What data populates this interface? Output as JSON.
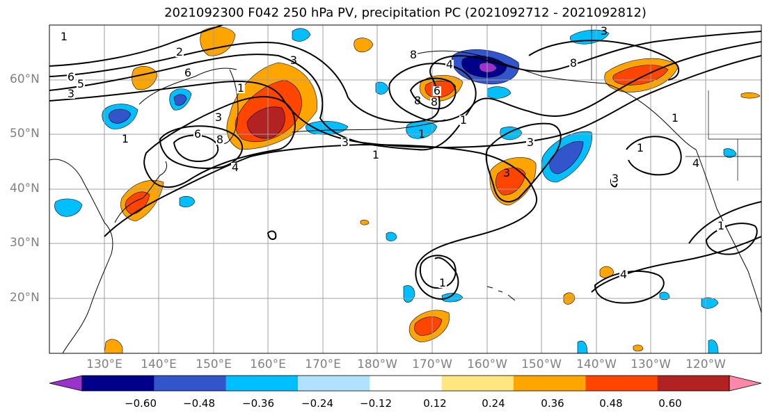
{
  "title": "2021092300 F042 250 hPa PV, precipitation PC (2021092712 - 2021092812)",
  "lat_labels": [
    "60°N",
    "50°N",
    "40°N",
    "30°N",
    "20°N"
  ],
  "lon_labels": [
    "130°E",
    "140°E",
    "150°E",
    "160°E",
    "170°E",
    "180°W",
    "170°W",
    "160°W",
    "150°W",
    "140°W",
    "130°W",
    "120°W"
  ],
  "colorbar": {
    "ticks": [
      "−0.60",
      "−0.48",
      "−0.36",
      "−0.24",
      "−0.12",
      "0.12",
      "0.24",
      "0.36",
      "0.48",
      "0.60"
    ],
    "colors": [
      "#9933cc",
      "#00008b",
      "#3355cc",
      "#00bfff",
      "#b0e2ff",
      "#ffffff",
      "#ffe680",
      "#ffa500",
      "#ff4500",
      "#b22222",
      "#ff88aa"
    ]
  },
  "contour_labels": [
    "1",
    "2",
    "6",
    "5",
    "3",
    "1",
    "3",
    "6",
    "8",
    "4",
    "3",
    "1",
    "8",
    "4",
    "6",
    "8",
    "1",
    "8",
    "3",
    "1",
    "3",
    "4",
    "1",
    "1",
    "3",
    "1",
    "3",
    "1",
    "3",
    "4",
    "6",
    "8",
    "1"
  ]
}
